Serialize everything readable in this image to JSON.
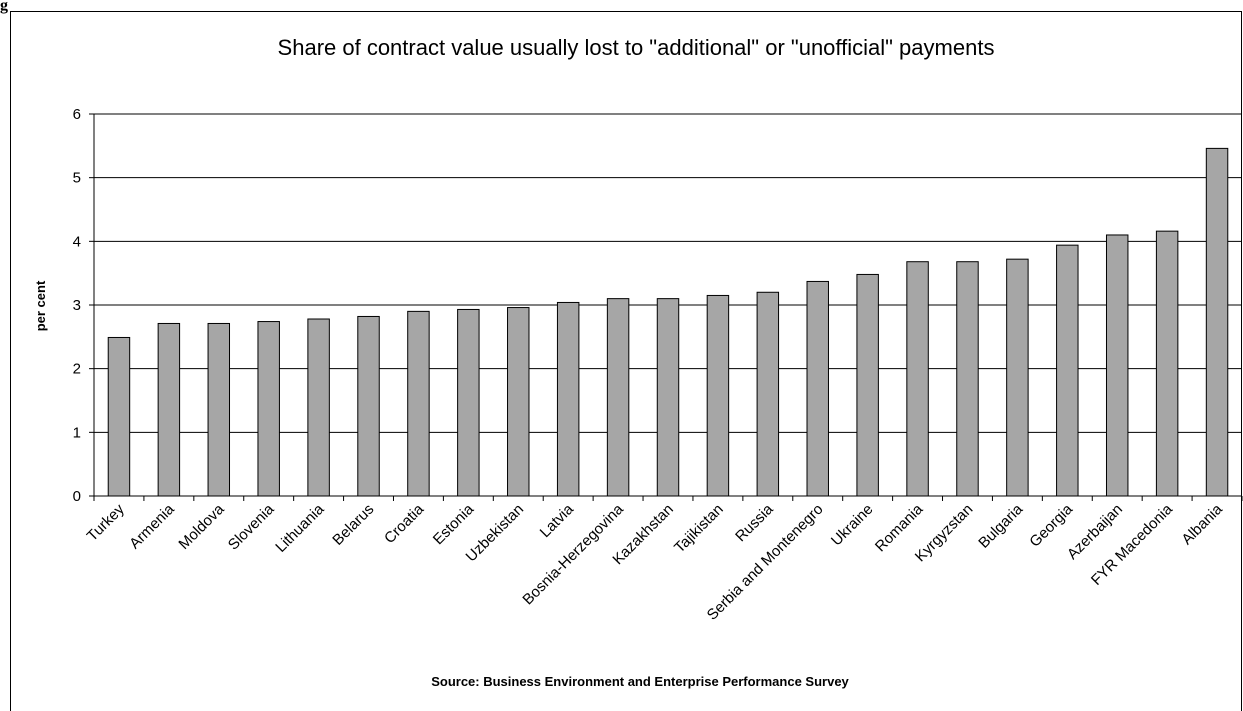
{
  "corner_label": "g",
  "chart_data": {
    "type": "bar",
    "title": "Share of contract value usually lost to \"additional\" or \"unofficial\" payments",
    "ylabel": "per cent",
    "xlabel": "",
    "source": "Source: Business Environment and Enterprise Performance Survey",
    "ylim": [
      0,
      6
    ],
    "yticks": [
      0,
      1,
      2,
      3,
      4,
      5,
      6
    ],
    "grid": true,
    "bar_color": "#a6a6a6",
    "categories": [
      "Turkey",
      "Armenia",
      "Moldova",
      "Slovenia",
      "Lithuania",
      "Belarus",
      "Croatia",
      "Estonia",
      "Uzbekistan",
      "Latvia",
      "Bosnia-Herzegovina",
      "Kazakhstan",
      "Tajikistan",
      "Russia",
      "Serbia and Montenegro",
      "Ukraine",
      "Romania",
      "Kyrgyzstan",
      "Bulgaria",
      "Georgia",
      "Azerbaijan",
      "FYR Macedonia",
      "Albania"
    ],
    "values": [
      2.49,
      2.71,
      2.71,
      2.74,
      2.78,
      2.82,
      2.9,
      2.93,
      2.96,
      3.04,
      3.1,
      3.1,
      3.15,
      3.2,
      3.37,
      3.48,
      3.68,
      3.68,
      3.72,
      3.94,
      4.1,
      4.16,
      5.46
    ]
  }
}
